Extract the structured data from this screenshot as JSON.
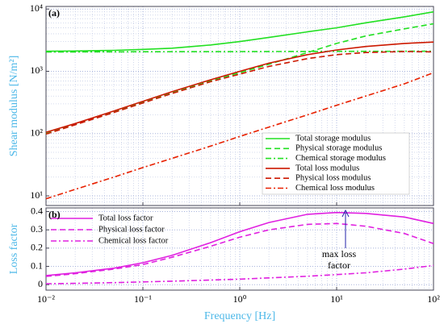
{
  "chart_data": [
    {
      "type": "line",
      "ylabel": "Shear modulus [N/m²]",
      "annotation": "(a)",
      "x": [
        0.01,
        0.02,
        0.05,
        0.1,
        0.2,
        0.5,
        1,
        2,
        5,
        10,
        20,
        50,
        100
      ],
      "xlim": [
        0.01,
        100
      ],
      "xticks": [
        0.01,
        0.1,
        1,
        10,
        100
      ],
      "xscale": "log",
      "ylim": [
        7,
        11000
      ],
      "yscale": "log",
      "yticks": [
        {
          "value": 10,
          "label": "10¹"
        },
        {
          "value": 100,
          "label": "10²"
        },
        {
          "value": 1000,
          "label": "10³"
        },
        {
          "value": 10000,
          "label": "10⁴"
        }
      ],
      "grid": true,
      "legend": "lower right",
      "series": [
        {
          "name": "Total storage modulus",
          "color": "#22e022",
          "dash": "solid",
          "values": [
            2100,
            2120,
            2170,
            2250,
            2350,
            2650,
            3000,
            3500,
            4300,
            5000,
            6000,
            7500,
            9000
          ]
        },
        {
          "name": "Physical storage modulus",
          "color": "#22e022",
          "dash": "dashed",
          "values": [
            100,
            140,
            220,
            320,
            450,
            700,
            950,
            1300,
            2000,
            2800,
            3700,
            4800,
            5800
          ]
        },
        {
          "name": "Chemical storage modulus",
          "color": "#22e022",
          "dash": "dashdot",
          "values": [
            2050,
            2050,
            2055,
            2060,
            2065,
            2070,
            2075,
            2080,
            2085,
            2090,
            2095,
            2100,
            2100
          ]
        },
        {
          "name": "Total loss modulus",
          "color": "#cc1800",
          "dash": "solid",
          "values": [
            105,
            145,
            230,
            330,
            470,
            730,
            1000,
            1350,
            1850,
            2200,
            2500,
            2800,
            2950
          ]
        },
        {
          "name": "Physical loss modulus",
          "color": "#cc1800",
          "dash": "dashed",
          "values": [
            98,
            138,
            218,
            310,
            440,
            680,
            900,
            1200,
            1600,
            1850,
            2000,
            2080,
            2050
          ]
        },
        {
          "name": "Chemical loss modulus",
          "color": "#e82000",
          "dash": "dashdot",
          "values": [
            9,
            12.7,
            20,
            28.5,
            40,
            63,
            90,
            127,
            200,
            285,
            400,
            630,
            950
          ]
        }
      ]
    },
    {
      "type": "line",
      "ylabel": "Loss factor",
      "xlabel": "Frequency [Hz]",
      "annotation": "(b)",
      "callout": [
        "max loss",
        "factor"
      ],
      "x": [
        0.01,
        0.02,
        0.05,
        0.1,
        0.2,
        0.5,
        1,
        2,
        5,
        10,
        20,
        50,
        100
      ],
      "xlim": [
        0.01,
        100
      ],
      "xscale": "log",
      "xticks": [
        {
          "value": 0.01,
          "label": "10⁻²"
        },
        {
          "value": 0.1,
          "label": "10⁻¹"
        },
        {
          "value": 1,
          "label": "10⁰"
        },
        {
          "value": 10,
          "label": "10¹"
        },
        {
          "value": 100,
          "label": "10²"
        }
      ],
      "ylim": [
        -0.03,
        0.42
      ],
      "yticks": [
        0,
        0.1,
        0.2,
        0.3,
        0.4
      ],
      "grid": true,
      "legend": "upper left",
      "series": [
        {
          "name": "Total loss factor",
          "color": "#e020e0",
          "dash": "solid",
          "values": [
            0.05,
            0.065,
            0.09,
            0.12,
            0.16,
            0.23,
            0.29,
            0.34,
            0.385,
            0.395,
            0.39,
            0.37,
            0.335
          ]
        },
        {
          "name": "Physical loss factor",
          "color": "#e020e0",
          "dash": "dashed",
          "values": [
            0.045,
            0.06,
            0.085,
            0.11,
            0.15,
            0.21,
            0.26,
            0.3,
            0.33,
            0.335,
            0.32,
            0.28,
            0.225
          ]
        },
        {
          "name": "Chemical loss factor",
          "color": "#e020e0",
          "dash": "dashdot",
          "values": [
            0.005,
            0.007,
            0.011,
            0.015,
            0.019,
            0.025,
            0.03,
            0.037,
            0.046,
            0.055,
            0.065,
            0.085,
            0.105
          ]
        }
      ]
    }
  ]
}
